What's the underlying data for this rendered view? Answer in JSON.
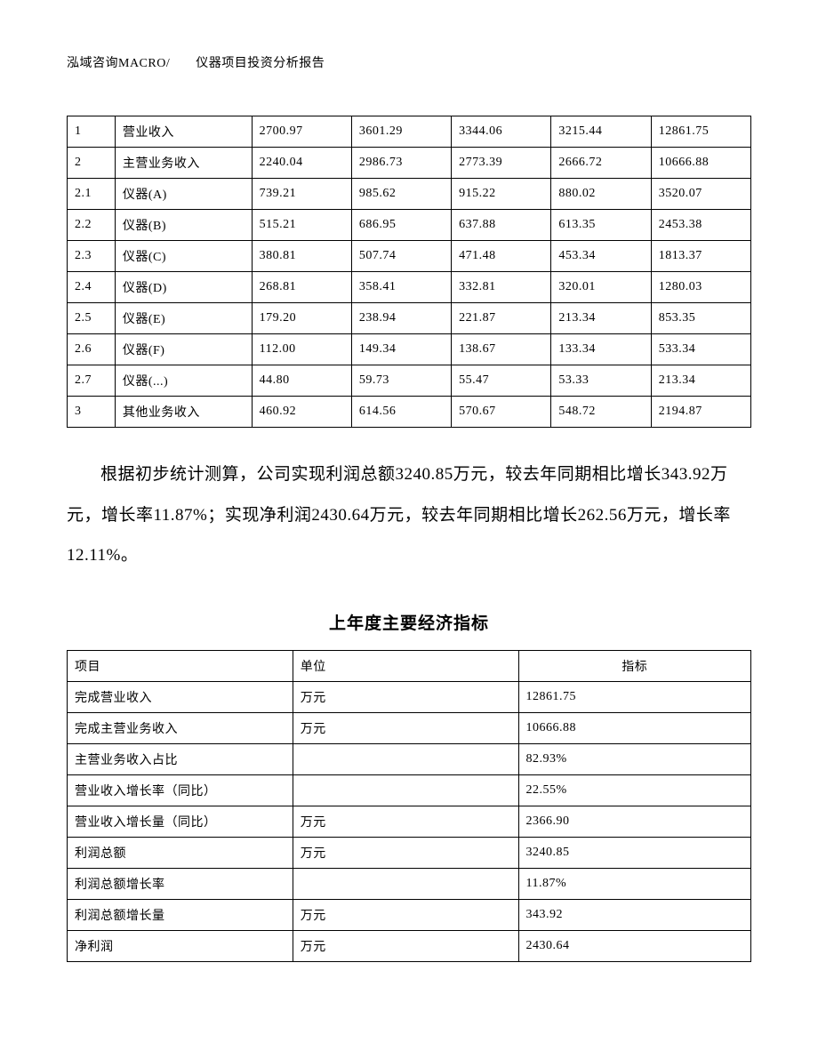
{
  "header": {
    "text": "泓域咨询MACRO/　　仪器项目投资分析报告"
  },
  "table1": {
    "type": "table",
    "border_color": "#000000",
    "background_color": "#ffffff",
    "font_size": 14,
    "col_widths_pct": [
      7,
      20,
      14.6,
      14.6,
      14.6,
      14.6,
      14.6
    ],
    "rows": [
      [
        "1",
        "营业收入",
        "2700.97",
        "3601.29",
        "3344.06",
        "3215.44",
        "12861.75"
      ],
      [
        "2",
        "主营业务收入",
        "2240.04",
        "2986.73",
        "2773.39",
        "2666.72",
        "10666.88"
      ],
      [
        "2.1",
        "仪器(A)",
        "739.21",
        "985.62",
        "915.22",
        "880.02",
        "3520.07"
      ],
      [
        "2.2",
        "仪器(B)",
        "515.21",
        "686.95",
        "637.88",
        "613.35",
        "2453.38"
      ],
      [
        "2.3",
        "仪器(C)",
        "380.81",
        "507.74",
        "471.48",
        "453.34",
        "1813.37"
      ],
      [
        "2.4",
        "仪器(D)",
        "268.81",
        "358.41",
        "332.81",
        "320.01",
        "1280.03"
      ],
      [
        "2.5",
        "仪器(E)",
        "179.20",
        "238.94",
        "221.87",
        "213.34",
        "853.35"
      ],
      [
        "2.6",
        "仪器(F)",
        "112.00",
        "149.34",
        "138.67",
        "133.34",
        "533.34"
      ],
      [
        "2.7",
        "仪器(...)",
        "44.80",
        "59.73",
        "55.47",
        "53.33",
        "213.34"
      ],
      [
        "3",
        "其他业务收入",
        "460.92",
        "614.56",
        "570.67",
        "548.72",
        "2194.87"
      ]
    ]
  },
  "paragraph": {
    "text": "根据初步统计测算，公司实现利润总额3240.85万元，较去年同期相比增长343.92万元，增长率11.87%；实现净利润2430.64万元，较去年同期相比增长262.56万元，增长率12.11%。",
    "font_size": 19,
    "line_height": 2.4,
    "text_indent_em": 2
  },
  "title2": {
    "text": "上年度主要经济指标",
    "font_size": 19
  },
  "table2": {
    "type": "table",
    "border_color": "#000000",
    "background_color": "#ffffff",
    "font_size": 14,
    "col_widths_pct": [
      33,
      33,
      34
    ],
    "header_bold": true,
    "columns": [
      "项目",
      "单位",
      "指标"
    ],
    "rows": [
      [
        "完成营业收入",
        "万元",
        "12861.75"
      ],
      [
        "完成主营业务收入",
        "万元",
        "10666.88"
      ],
      [
        "主营业务收入占比",
        "",
        "82.93%"
      ],
      [
        "营业收入增长率（同比）",
        "",
        "22.55%"
      ],
      [
        "营业收入增长量（同比）",
        "万元",
        "2366.90"
      ],
      [
        "利润总额",
        "万元",
        "3240.85"
      ],
      [
        "利润总额增长率",
        "",
        "11.87%"
      ],
      [
        "利润总额增长量",
        "万元",
        "343.92"
      ],
      [
        "净利润",
        "万元",
        "2430.64"
      ]
    ]
  }
}
